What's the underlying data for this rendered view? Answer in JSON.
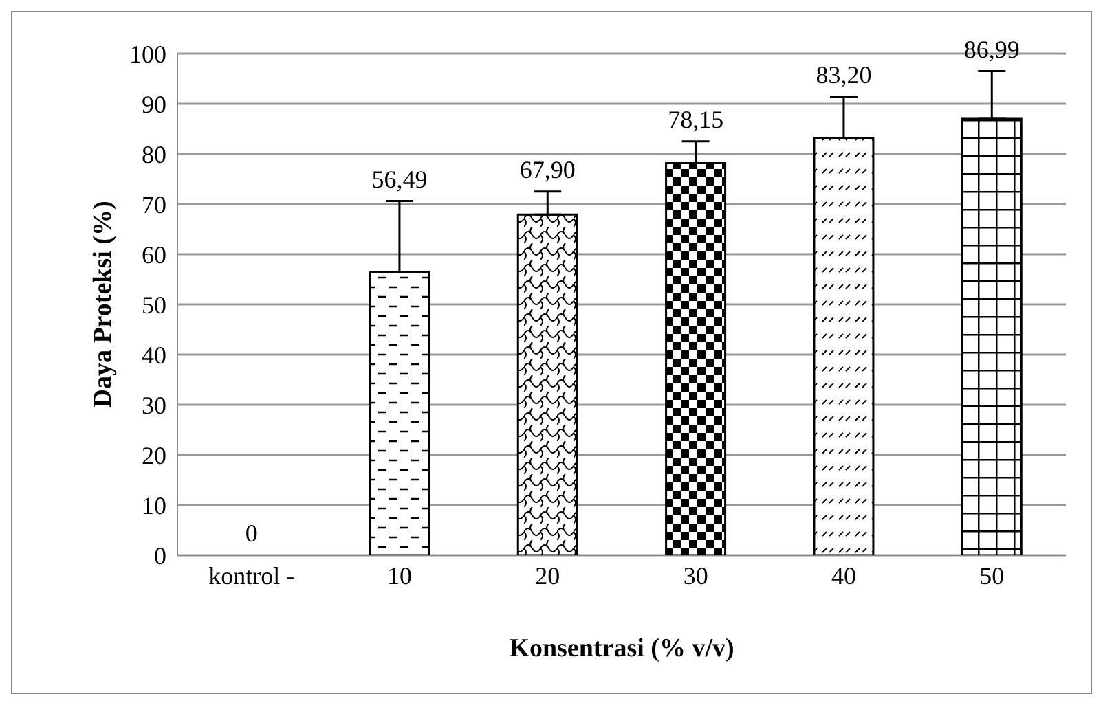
{
  "chart_data": {
    "type": "bar",
    "xlabel": "Konsentrasi (% v/v)",
    "ylabel": "Daya Proteksi (%)",
    "categories": [
      "kontrol -",
      "10",
      "20",
      "30",
      "40",
      "50"
    ],
    "values": [
      0,
      56.49,
      67.9,
      78.15,
      83.2,
      86.99
    ],
    "value_labels": [
      "0",
      "56,49",
      "67,90",
      "78,15",
      "83,20",
      "86,99"
    ],
    "errors": [
      null,
      [
        56.49,
        70.6
      ],
      [
        67.9,
        72.5
      ],
      [
        78.15,
        82.5
      ],
      [
        83.2,
        91.4
      ],
      [
        86.99,
        96.5
      ]
    ],
    "color": "#000000",
    "ylim": [
      0,
      100
    ],
    "yticks": [
      0,
      10,
      20,
      30,
      40,
      50,
      60,
      70,
      80,
      90,
      100
    ],
    "grid": "y",
    "legend": false
  }
}
